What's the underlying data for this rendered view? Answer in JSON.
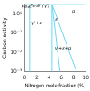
{
  "chart_data": {
    "type": "line",
    "xlabel": "Nitrogen mole fraction (%)",
    "ylabel": "Carbon activity",
    "log": "y",
    "grid": false,
    "xlim": [
      0,
      10
    ],
    "xticks": [
      0,
      2,
      4,
      6,
      8,
      10
    ],
    "ylim": [
      0.001,
      3.1622776601683795
    ],
    "yticks": [
      {
        "value": 0.001,
        "label": "10⁻³"
      },
      {
        "value": 0.01,
        "label": "10⁻²"
      },
      {
        "value": 0.1,
        "label": "10⁻¹"
      },
      {
        "value": 1,
        "label": "10⁰"
      }
    ],
    "series": [
      {
        "x": [
          0,
          10
        ],
        "values": [
          3.0902954325135905,
          3.0902954325135905
        ],
        "color": "#6cd6f0"
      },
      {
        "x": [
          0.8,
          0.8
        ],
        "values": [
          0.001,
          3.0902954325135905
        ],
        "color": "#6cd6f0"
      },
      {
        "x": [
          4.5,
          4.5
        ],
        "values": [
          0.001,
          3.0902954325135905
        ],
        "color": "#6cd6f0"
      },
      {
        "x": [
          4.5,
          5.8
        ],
        "values": [
          3.0902954325135905,
          0.001
        ],
        "color": "#6cd6f0"
      },
      {
        "x": [
          4.5,
          8.5
        ],
        "values": [
          3.0902954325135905,
          0.001
        ],
        "color": "#6cd6f0"
      }
    ],
    "annotations": [
      {
        "text": "Fe₃C",
        "x": 0.4,
        "y": 2.2387211385683394
      },
      {
        "text": "Fe₄N (γ′)",
        "x": 2.5,
        "y": 2.39883291901949
      },
      {
        "text": "γ′+α",
        "x": 2.0,
        "y": 0.31622776601683794
      },
      {
        "text": "ε",
        "x": 5.2,
        "y": 0.5011872336272722
      },
      {
        "text": "α",
        "x": 8.0,
        "y": 1.2589254117941673
      },
      {
        "text": "γ′+ε+α",
        "x": 6.3,
        "y": 0.015848931924611134
      }
    ]
  }
}
